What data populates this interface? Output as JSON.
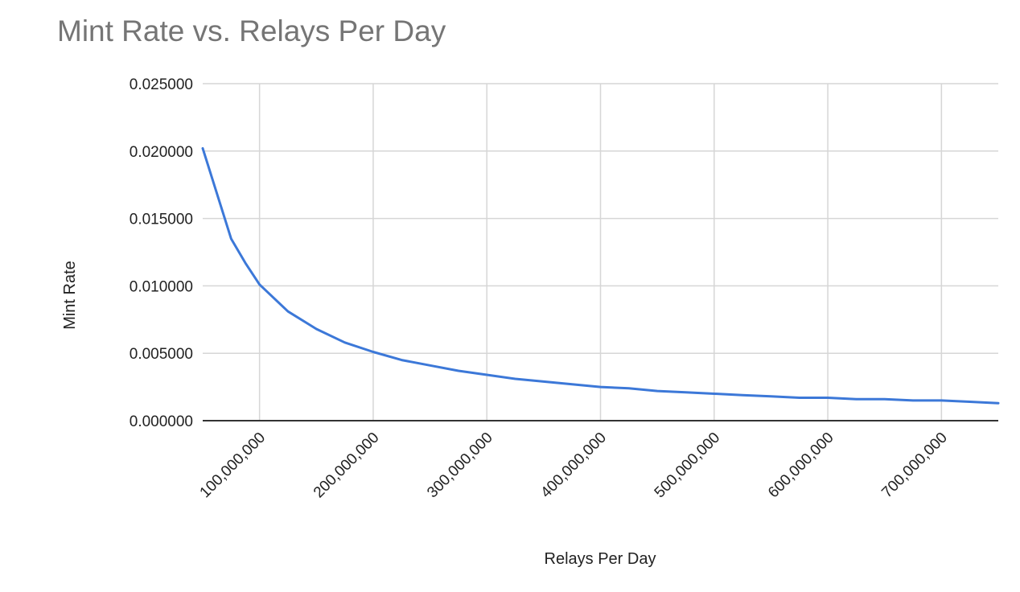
{
  "chart_data": {
    "type": "line",
    "title": "Mint Rate vs. Relays Per Day",
    "xlabel": "Relays Per Day",
    "ylabel": "Mint Rate",
    "xlim": [
      50000000,
      750000000
    ],
    "ylim": [
      0,
      0.025
    ],
    "x_ticks": [
      100000000,
      200000000,
      300000000,
      400000000,
      500000000,
      600000000,
      700000000
    ],
    "x_tick_labels": [
      "100,000,000",
      "200,000,000",
      "300,000,000",
      "400,000,000",
      "500,000,000",
      "600,000,000",
      "700,000,000"
    ],
    "y_ticks": [
      0,
      0.005,
      0.01,
      0.015,
      0.02,
      0.025
    ],
    "y_tick_labels": [
      "0.000000",
      "0.005000",
      "0.010000",
      "0.015000",
      "0.020000",
      "0.025000"
    ],
    "grid": true,
    "legend": "none",
    "series": [
      {
        "color": "#3c78d8",
        "x": [
          50000000,
          75000000,
          87500000,
          100000000,
          125000000,
          150000000,
          175000000,
          200000000,
          225000000,
          250000000,
          275000000,
          300000000,
          325000000,
          350000000,
          375000000,
          400000000,
          425000000,
          450000000,
          475000000,
          500000000,
          525000000,
          550000000,
          575000000,
          600000000,
          625000000,
          650000000,
          675000000,
          700000000,
          725000000,
          750000000
        ],
        "y": [
          0.0202,
          0.0135,
          0.0117,
          0.0101,
          0.0081,
          0.0068,
          0.0058,
          0.0051,
          0.0045,
          0.0041,
          0.0037,
          0.0034,
          0.0031,
          0.0029,
          0.0027,
          0.0025,
          0.0024,
          0.0022,
          0.0021,
          0.002,
          0.0019,
          0.0018,
          0.0017,
          0.0017,
          0.0016,
          0.0016,
          0.0015,
          0.0015,
          0.0014,
          0.0013
        ]
      }
    ]
  }
}
